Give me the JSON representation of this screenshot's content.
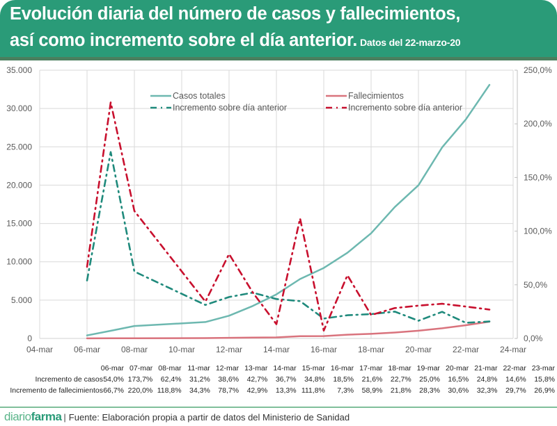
{
  "header": {
    "title_line1": "Evolución diaria del número de casos y fallecimientos,",
    "title_line2": "así como incremento sobre el día anterior.",
    "subtitle": "Datos del 22-marzo-20"
  },
  "colors": {
    "header_bg": "#2a9b78",
    "cases_total": "#6db8b0",
    "cases_increment": "#1f8a7c",
    "deaths_total": "#d9737d",
    "deaths_increment": "#c8102e"
  },
  "chart_data": {
    "type": "line",
    "title": "Evolución diaria del número de casos y fallecimientos, así como incremento sobre el día anterior.",
    "x_dates": [
      "06-mar",
      "07-mar",
      "08-mar",
      "11-mar",
      "12-mar",
      "13-mar",
      "14-mar",
      "15-mar",
      "16-mar",
      "17-mar",
      "18-mar",
      "19-mar",
      "20-mar",
      "21-mar",
      "22-mar",
      "23-mar"
    ],
    "x_day_index": [
      6,
      7,
      8,
      11,
      12,
      13,
      14,
      15,
      16,
      17,
      18,
      19,
      20,
      21,
      22,
      23
    ],
    "x_ticks": [
      "04-mar",
      "06-mar",
      "08-mar",
      "10-mar",
      "12-mar",
      "14-mar",
      "16-mar",
      "18-mar",
      "20-mar",
      "22-mar",
      "24-mar"
    ],
    "x_tick_days": [
      4,
      6,
      8,
      10,
      12,
      14,
      16,
      18,
      20,
      22,
      24
    ],
    "y_left_ticks": [
      "0",
      "5.000",
      "10.000",
      "15.000",
      "20.000",
      "25.000",
      "30.000",
      "35.000"
    ],
    "y_left_range": [
      0,
      35000
    ],
    "y_right_ticks": [
      "0,0%",
      "50,0%",
      "100,0%",
      "150,0%",
      "200,0%",
      "250,0%"
    ],
    "y_right_range": [
      0,
      250
    ],
    "grid": true,
    "legend_position": "top-center",
    "series": [
      {
        "name": "Casos totales",
        "axis": "left",
        "style": "solid",
        "values": [
          400,
          1000,
          1620,
          2140,
          2965,
          4230,
          5750,
          7750,
          9190,
          11180,
          13720,
          17150,
          19980,
          24930,
          28570,
          33090
        ]
      },
      {
        "name": "Fallecimientos",
        "axis": "left",
        "style": "solid",
        "values": [
          5,
          17,
          30,
          47,
          84,
          120,
          136,
          288,
          309,
          491,
          598,
          767,
          1002,
          1326,
          1720,
          2182
        ]
      },
      {
        "name": "Incremento sobre día anterior",
        "axis": "right",
        "style": "dashdot",
        "ref": "casos",
        "values": [
          54.0,
          173.7,
          62.4,
          31.2,
          38.6,
          42.7,
          36.7,
          34.8,
          18.5,
          21.6,
          22.7,
          25.0,
          16.5,
          24.8,
          14.6,
          15.8
        ]
      },
      {
        "name": "Incremento sobre día anterior",
        "axis": "right",
        "style": "dashdot",
        "ref": "fallecimientos",
        "values": [
          66.7,
          220.0,
          118.8,
          34.3,
          78.7,
          42.9,
          13.3,
          111.8,
          7.3,
          58.9,
          21.8,
          28.3,
          30.6,
          32.3,
          29.7,
          26.9
        ]
      }
    ]
  },
  "table": {
    "headers": [
      "06-mar",
      "07-mar",
      "08-mar",
      "11-mar",
      "12-mar",
      "13-mar",
      "14-mar",
      "15-mar",
      "16-mar",
      "17-mar",
      "18-mar",
      "19-mar",
      "20-mar",
      "21-mar",
      "22-mar",
      "23-mar"
    ],
    "rows": [
      {
        "label": "Incremento de casos",
        "cells": [
          "54,0%",
          "173,7%",
          "62,4%",
          "31,2%",
          "38,6%",
          "42,7%",
          "36,7%",
          "34,8%",
          "18,5%",
          "21,6%",
          "22,7%",
          "25,0%",
          "16,5%",
          "24,8%",
          "14,6%",
          "15,8%"
        ]
      },
      {
        "label": "Incremento de fallecimientos",
        "cells": [
          "66,7%",
          "220,0%",
          "118,8%",
          "34,3%",
          "78,7%",
          "42,9%",
          "13,3%",
          "111,8%",
          "7,3%",
          "58,9%",
          "21,8%",
          "28,3%",
          "30,6%",
          "32,3%",
          "29,7%",
          "26,9%"
        ]
      }
    ]
  },
  "footer": {
    "logo_part1": "diario",
    "logo_part2": "farma",
    "separator": "|",
    "source": "Fuente: Elaboración propia a partir de datos del Ministerio de Sanidad"
  }
}
